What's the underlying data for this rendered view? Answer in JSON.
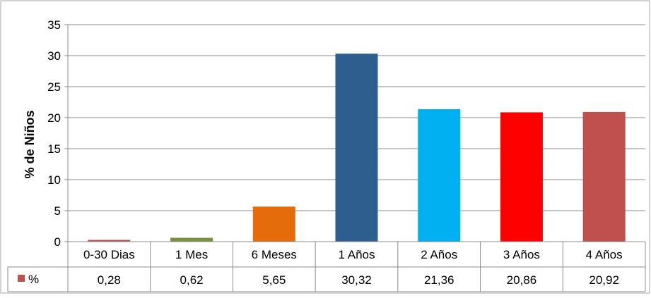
{
  "chart_data": {
    "type": "bar",
    "title": "",
    "ylabel": "% de Niños",
    "xlabel": "",
    "ylim": [
      0,
      35
    ],
    "yticks": [
      0,
      5,
      10,
      15,
      20,
      25,
      30,
      35
    ],
    "grid": true,
    "data_table": true,
    "categories": [
      "0-30 Dias",
      "1  Mes",
      "6 Meses",
      "1 Años",
      "2 Años",
      "3 Años",
      "4 Años"
    ],
    "series": [
      {
        "name": "%",
        "values": [
          0.28,
          0.62,
          5.65,
          30.32,
          21.36,
          20.86,
          20.92
        ],
        "value_labels": [
          "0,28",
          "0,62",
          "5,65",
          "30,32",
          "21,36",
          "20,86",
          "20,92"
        ],
        "colors": [
          "#C0504D",
          "#77933C",
          "#E46C0A",
          "#2E5E8E",
          "#00B0F0",
          "#FF0000",
          "#C0504D"
        ]
      }
    ],
    "legend_color": "#C0504D"
  }
}
